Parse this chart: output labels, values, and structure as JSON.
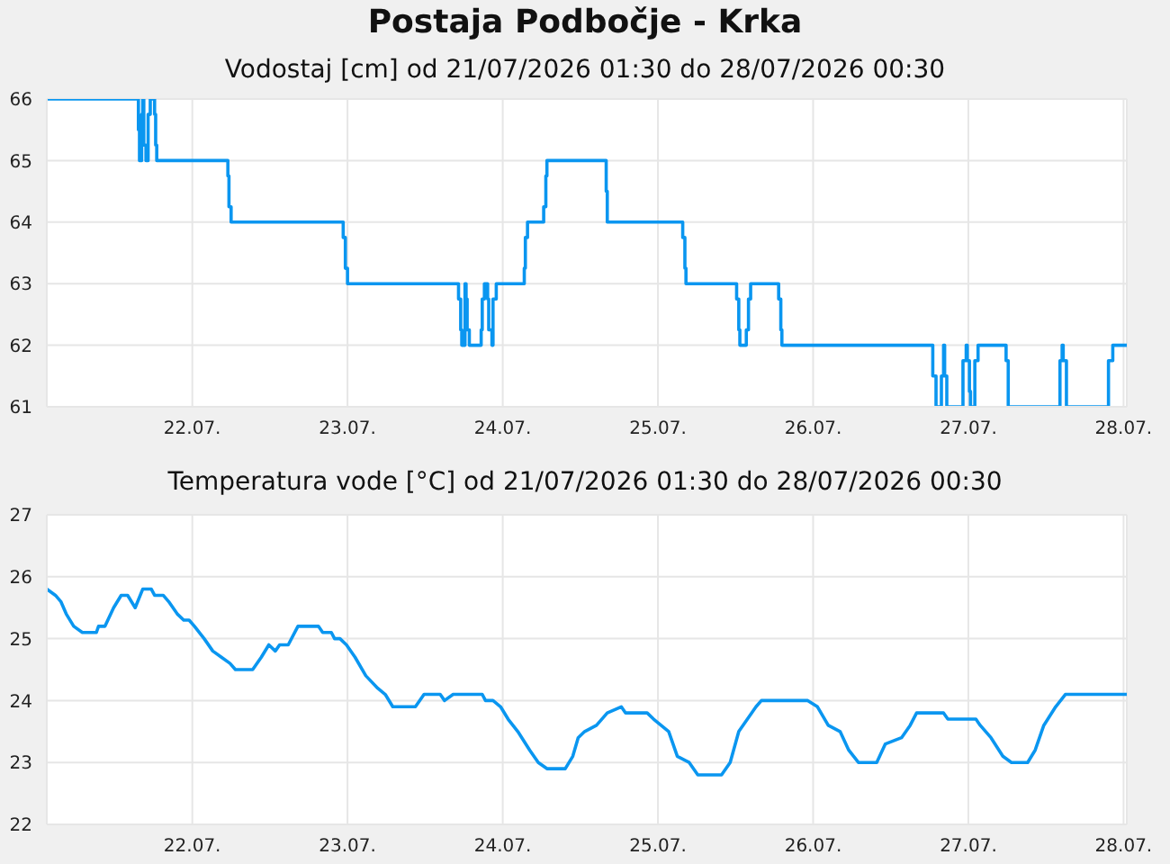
{
  "chart_data": [
    {
      "type": "step",
      "title": "Postaja Podbočje - Krka",
      "subtitle": "Vodostaj [cm] od 21/07/2026 01:30 do 28/07/2026 00:30",
      "color": "#0a96f0",
      "grid": true,
      "xlim": [
        "2026-07-21T01:30",
        "2026-07-28T00:30"
      ],
      "xticks": [
        {
          "value": "2026-07-22",
          "label": "22.07."
        },
        {
          "value": "2026-07-23",
          "label": "23.07."
        },
        {
          "value": "2026-07-24",
          "label": "24.07."
        },
        {
          "value": "2026-07-25",
          "label": "25.07."
        },
        {
          "value": "2026-07-26",
          "label": "26.07."
        },
        {
          "value": "2026-07-27",
          "label": "27.07."
        },
        {
          "value": "2026-07-28",
          "label": "28.07."
        }
      ],
      "ylim": [
        61,
        66
      ],
      "yticks": [
        61,
        62,
        63,
        64,
        65,
        66
      ],
      "x": [
        "2026-07-21T01:30",
        "2026-07-21T15:40",
        "2026-07-21T15:50",
        "2026-07-21T16:10",
        "2026-07-21T16:20",
        "2026-07-21T16:30",
        "2026-07-21T16:50",
        "2026-07-21T17:10",
        "2026-07-21T17:30",
        "2026-07-21T18:10",
        "2026-07-21T18:20",
        "2026-07-21T18:30",
        "2026-07-22T05:30",
        "2026-07-22T05:40",
        "2026-07-22T06:00",
        "2026-07-22T23:20",
        "2026-07-22T23:40",
        "2026-07-23T00:00",
        "2026-07-23T17:10",
        "2026-07-23T17:30",
        "2026-07-23T17:40",
        "2026-07-23T18:10",
        "2026-07-23T18:20",
        "2026-07-23T18:30",
        "2026-07-23T18:50",
        "2026-07-23T20:40",
        "2026-07-23T20:50",
        "2026-07-23T21:10",
        "2026-07-23T21:40",
        "2026-07-23T21:50",
        "2026-07-23T22:20",
        "2026-07-23T22:30",
        "2026-07-23T23:00",
        "2026-07-24T03:20",
        "2026-07-24T03:30",
        "2026-07-24T03:50",
        "2026-07-24T06:20",
        "2026-07-24T06:40",
        "2026-07-24T06:50",
        "2026-07-24T16:00",
        "2026-07-24T16:10",
        "2026-07-25T03:50",
        "2026-07-25T04:10",
        "2026-07-25T04:20",
        "2026-07-25T12:10",
        "2026-07-25T12:30",
        "2026-07-25T12:40",
        "2026-07-25T13:40",
        "2026-07-25T14:00",
        "2026-07-25T14:20",
        "2026-07-25T18:40",
        "2026-07-25T19:00",
        "2026-07-25T19:10",
        "2026-07-26T18:30",
        "2026-07-26T19:00",
        "2026-07-26T19:50",
        "2026-07-26T20:10",
        "2026-07-26T20:20",
        "2026-07-26T20:40",
        "2026-07-26T23:10",
        "2026-07-26T23:40",
        "2026-07-26T23:50",
        "2026-07-27T00:10",
        "2026-07-27T00:20",
        "2026-07-27T01:00",
        "2026-07-27T01:30",
        "2026-07-27T05:50",
        "2026-07-27T06:10",
        "2026-07-27T14:10",
        "2026-07-27T14:30",
        "2026-07-27T14:40",
        "2026-07-27T15:10",
        "2026-07-27T21:40",
        "2026-07-27T22:20",
        "2026-07-28T00:30"
      ],
      "values": [
        66,
        65.5,
        65,
        65.75,
        66,
        65.25,
        65,
        65.75,
        66,
        65.75,
        65.25,
        65,
        64.75,
        64.25,
        64,
        63.75,
        63.25,
        63,
        62.75,
        62.25,
        62,
        63,
        62.75,
        62.25,
        62,
        62.25,
        62.75,
        63,
        62.75,
        62.25,
        62,
        62.75,
        63,
        63.25,
        63.75,
        64,
        64.25,
        64.75,
        65,
        64.5,
        64,
        63.75,
        63.25,
        63,
        62.75,
        62.25,
        62,
        62.25,
        62.75,
        63,
        62.75,
        62.25,
        62,
        61.5,
        61,
        61.5,
        62,
        61.5,
        61,
        61.75,
        62,
        61.75,
        61.25,
        61,
        61.75,
        62,
        61.75,
        61,
        61.75,
        62,
        61.75,
        61,
        61.75,
        62,
        62
      ]
    },
    {
      "type": "line",
      "title": "Temperatura vode [°C] od 21/07/2026 01:30 do 28/07/2026 00:30",
      "color": "#0a96f0",
      "grid": true,
      "xlim": [
        "2026-07-21T01:30",
        "2026-07-28T00:30"
      ],
      "xticks": [
        {
          "value": "2026-07-22",
          "label": "22.07."
        },
        {
          "value": "2026-07-23",
          "label": "23.07."
        },
        {
          "value": "2026-07-24",
          "label": "24.07."
        },
        {
          "value": "2026-07-25",
          "label": "25.07."
        },
        {
          "value": "2026-07-26",
          "label": "26.07."
        },
        {
          "value": "2026-07-27",
          "label": "27.07."
        },
        {
          "value": "2026-07-28",
          "label": "28.07."
        }
      ],
      "ylim": [
        22,
        27
      ],
      "yticks": [
        22,
        23,
        24,
        25,
        26,
        27
      ],
      "x": [
        "2026-07-21T01:30",
        "2026-07-21T02:50",
        "2026-07-21T03:40",
        "2026-07-21T04:30",
        "2026-07-21T05:40",
        "2026-07-21T07:00",
        "2026-07-21T09:10",
        "2026-07-21T09:30",
        "2026-07-21T10:30",
        "2026-07-21T11:50",
        "2026-07-21T13:00",
        "2026-07-21T14:00",
        "2026-07-21T15:10",
        "2026-07-21T16:20",
        "2026-07-21T17:40",
        "2026-07-21T18:10",
        "2026-07-21T19:30",
        "2026-07-21T20:20",
        "2026-07-21T21:40",
        "2026-07-21T22:40",
        "2026-07-21T23:30",
        "2026-07-22T00:20",
        "2026-07-22T01:50",
        "2026-07-22T03:10",
        "2026-07-22T04:30",
        "2026-07-22T05:50",
        "2026-07-22T06:40",
        "2026-07-22T09:20",
        "2026-07-22T10:40",
        "2026-07-22T11:50",
        "2026-07-22T12:50",
        "2026-07-22T13:30",
        "2026-07-22T14:50",
        "2026-07-22T16:20",
        "2026-07-22T19:30",
        "2026-07-22T20:10",
        "2026-07-22T21:30",
        "2026-07-22T22:00",
        "2026-07-22T22:50",
        "2026-07-22T23:50",
        "2026-07-23T01:10",
        "2026-07-23T02:50",
        "2026-07-23T04:40",
        "2026-07-23T05:50",
        "2026-07-23T07:00",
        "2026-07-23T10:30",
        "2026-07-23T11:50",
        "2026-07-23T14:20",
        "2026-07-23T15:00",
        "2026-07-23T16:20",
        "2026-07-23T20:50",
        "2026-07-23T21:20",
        "2026-07-23T22:30",
        "2026-07-23T23:40",
        "2026-07-24T00:50",
        "2026-07-24T02:20",
        "2026-07-24T04:10",
        "2026-07-24T05:30",
        "2026-07-24T06:50",
        "2026-07-24T09:40",
        "2026-07-24T10:50",
        "2026-07-24T11:40",
        "2026-07-24T12:40",
        "2026-07-24T14:30",
        "2026-07-24T16:10",
        "2026-07-24T18:20",
        "2026-07-24T19:00",
        "2026-07-24T22:20",
        "2026-07-24T23:20",
        "2026-07-25T01:40",
        "2026-07-25T03:00",
        "2026-07-25T04:50",
        "2026-07-25T06:10",
        "2026-07-25T09:50",
        "2026-07-25T11:10",
        "2026-07-25T12:30",
        "2026-07-25T13:50",
        "2026-07-25T15:10",
        "2026-07-25T16:00",
        "2026-07-25T23:10",
        "2026-07-26T00:40",
        "2026-07-26T02:20",
        "2026-07-26T04:10",
        "2026-07-26T05:30",
        "2026-07-26T07:00",
        "2026-07-26T09:50",
        "2026-07-26T11:10",
        "2026-07-26T13:40",
        "2026-07-26T15:00",
        "2026-07-26T16:00",
        "2026-07-26T20:10",
        "2026-07-26T20:50",
        "2026-07-27T01:10",
        "2026-07-27T01:50",
        "2026-07-27T03:30",
        "2026-07-27T05:20",
        "2026-07-27T06:40",
        "2026-07-27T09:10",
        "2026-07-27T10:20",
        "2026-07-27T11:40",
        "2026-07-27T13:30",
        "2026-07-27T15:00",
        "2026-07-28T00:30"
      ],
      "values": [
        25.8,
        25.7,
        25.6,
        25.4,
        25.2,
        25.1,
        25.1,
        25.2,
        25.2,
        25.5,
        25.7,
        25.7,
        25.5,
        25.8,
        25.8,
        25.7,
        25.7,
        25.6,
        25.4,
        25.3,
        25.3,
        25.2,
        25.0,
        24.8,
        24.7,
        24.6,
        24.5,
        24.5,
        24.7,
        24.9,
        24.8,
        24.9,
        24.9,
        25.2,
        25.2,
        25.1,
        25.1,
        25.0,
        25.0,
        24.9,
        24.7,
        24.4,
        24.2,
        24.1,
        23.9,
        23.9,
        24.1,
        24.1,
        24.0,
        24.1,
        24.1,
        24.0,
        24.0,
        23.9,
        23.7,
        23.5,
        23.2,
        23.0,
        22.9,
        22.9,
        23.1,
        23.4,
        23.5,
        23.6,
        23.8,
        23.9,
        23.8,
        23.8,
        23.7,
        23.5,
        23.1,
        23.0,
        22.8,
        22.8,
        23.0,
        23.5,
        23.7,
        23.9,
        24.0,
        24.0,
        23.9,
        23.6,
        23.5,
        23.2,
        23.0,
        23.0,
        23.3,
        23.4,
        23.6,
        23.8,
        23.8,
        23.7,
        23.7,
        23.6,
        23.4,
        23.1,
        23.0,
        23.0,
        23.2,
        23.6,
        23.9,
        24.1,
        24.1
      ]
    }
  ]
}
